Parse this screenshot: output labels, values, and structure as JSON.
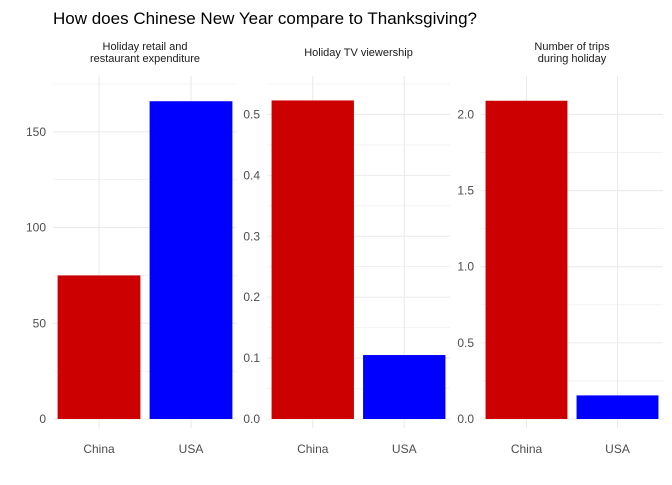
{
  "title": "How does Chinese New Year compare to Thanksgiving?",
  "colors": {
    "China": "#CC0000",
    "USA": "#0000FF",
    "grid": "#EBEBEB",
    "tick_text": "#4D4D4D",
    "title_text": "#000000",
    "strip_text": "#1A1A1A"
  },
  "chart_data": [
    {
      "type": "bar",
      "title": "Holiday retail and restaurant expenditure",
      "categories": [
        "China",
        "USA"
      ],
      "values": [
        75,
        166
      ],
      "ylim": [
        0,
        175
      ],
      "yticks": [
        0,
        50,
        100,
        150
      ],
      "ytick_labels": [
        "0",
        "50",
        "100",
        "150"
      ],
      "grid": true
    },
    {
      "type": "bar",
      "title": "Holiday TV viewership",
      "categories": [
        "China",
        "USA"
      ],
      "values": [
        0.523,
        0.105
      ],
      "ylim": [
        0,
        0.55
      ],
      "yticks": [
        0,
        0.1,
        0.2,
        0.3,
        0.4,
        0.5
      ],
      "ytick_labels": [
        "0.0",
        "0.1",
        "0.2",
        "0.3",
        "0.4",
        "0.5"
      ],
      "grid": true
    },
    {
      "type": "bar",
      "title": "Number of trips during holiday",
      "categories": [
        "China",
        "USA"
      ],
      "values": [
        2.09,
        0.155
      ],
      "ylim": [
        0,
        2.2
      ],
      "yticks": [
        0,
        0.5,
        1.0,
        1.5,
        2.0
      ],
      "ytick_labels": [
        "0.0",
        "0.5",
        "1.0",
        "1.5",
        "2.0"
      ],
      "grid": true
    }
  ]
}
